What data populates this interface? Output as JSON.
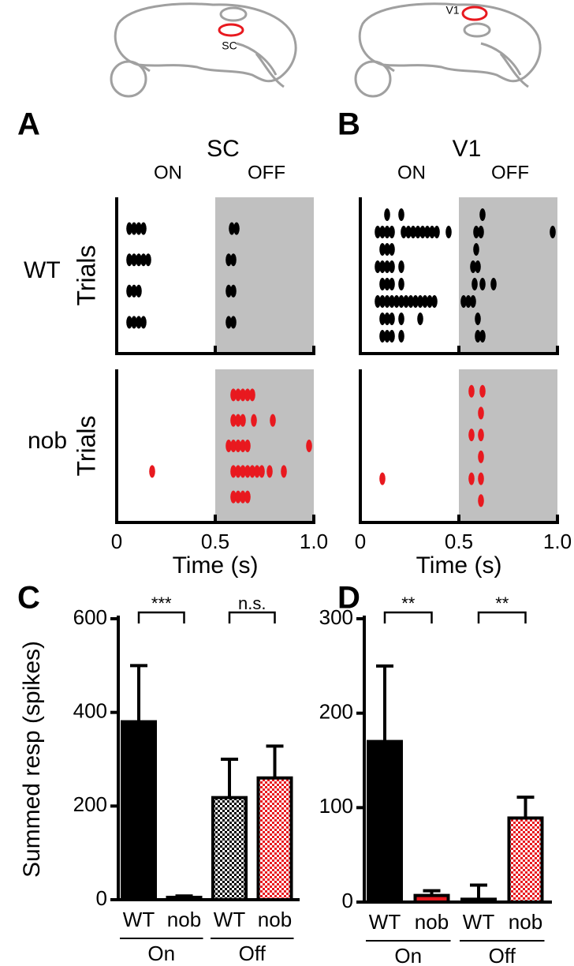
{
  "brain_labels": [
    "SC",
    "V1"
  ],
  "chart_data": [
    {
      "type": "scatter",
      "panel": "A",
      "title": "SC",
      "period_labels": [
        "ON",
        "OFF"
      ],
      "row_label": "WT",
      "y_label": "Trials",
      "color": "#000000",
      "shade": [
        0.5,
        1
      ],
      "xlim": [
        0,
        1
      ],
      "ylim": [
        0,
        5
      ],
      "xticks": [
        0.5,
        {
          "value": 1,
          "label": "1.0"
        }
      ],
      "show_tick_labels": false,
      "x": [
        0.064,
        0.088,
        0.112,
        0.136,
        0.584,
        0.608,
        0.064,
        0.088,
        0.112,
        0.136,
        0.16,
        0.568,
        0.592,
        0.064,
        0.088,
        0.112,
        0.568,
        0.592,
        0.064,
        0.088,
        0.112,
        0.136,
        0.568,
        0.592
      ],
      "y": [
        4,
        4,
        4,
        4,
        4,
        4,
        3,
        3,
        3,
        3,
        3,
        3,
        3,
        2,
        2,
        2,
        2,
        2,
        1,
        1,
        1,
        1,
        1,
        1
      ]
    },
    {
      "type": "scatter",
      "row_label": "nob",
      "y_label": "Trials",
      "x_label": "Time (s)",
      "color": "#e8191f",
      "shade": [
        0.5,
        1
      ],
      "xlim": [
        0,
        1
      ],
      "ylim": [
        0,
        6
      ],
      "xticks": [
        0,
        0.5,
        {
          "value": 1,
          "label": "1.0"
        }
      ],
      "show_tick_labels": true,
      "x": [
        0.592,
        0.616,
        0.64,
        0.664,
        0.688,
        0.592,
        0.616,
        0.64,
        0.696,
        0.792,
        0.568,
        0.592,
        0.616,
        0.64,
        0.664,
        0.976,
        0.18,
        0.592,
        0.616,
        0.64,
        0.664,
        0.688,
        0.712,
        0.736,
        0.776,
        0.848,
        0.592,
        0.616,
        0.64,
        0.664
      ],
      "y": [
        5,
        5,
        5,
        5,
        5,
        4,
        4,
        4,
        4,
        4,
        3,
        3,
        3,
        3,
        3,
        3,
        2,
        2,
        2,
        2,
        2,
        2,
        2,
        2,
        2,
        2,
        1,
        1,
        1,
        1
      ]
    },
    {
      "type": "scatter",
      "panel": "B",
      "title": "V1",
      "period_labels": [
        "ON",
        "OFF"
      ],
      "color": "#000000",
      "shade": [
        0.5,
        1
      ],
      "xlim": [
        0,
        1
      ],
      "ylim": [
        0,
        9
      ],
      "xticks": [
        0.5,
        {
          "value": 1,
          "label": "1.0"
        }
      ],
      "show_tick_labels": false,
      "x": [
        0.136,
        0.208,
        0.62,
        0.088,
        0.112,
        0.136,
        0.16,
        0.22,
        0.244,
        0.268,
        0.292,
        0.316,
        0.34,
        0.364,
        0.388,
        0.448,
        0.588,
        0.612,
        0.976,
        0.112,
        0.136,
        0.16,
        0.588,
        0.088,
        0.112,
        0.136,
        0.16,
        0.208,
        0.572,
        0.596,
        0.112,
        0.136,
        0.16,
        0.208,
        0.58,
        0.62,
        0.676,
        0.088,
        0.112,
        0.136,
        0.16,
        0.184,
        0.208,
        0.232,
        0.256,
        0.28,
        0.304,
        0.328,
        0.352,
        0.376,
        0.524,
        0.548,
        0.572,
        0.112,
        0.136,
        0.16,
        0.208,
        0.304,
        0.596,
        0.112,
        0.136,
        0.16,
        0.208,
        0.596,
        0.62
      ],
      "y": [
        8,
        8,
        8,
        7,
        7,
        7,
        7,
        7,
        7,
        7,
        7,
        7,
        7,
        7,
        7,
        7,
        7,
        7,
        7,
        6,
        6,
        6,
        6,
        5,
        5,
        5,
        5,
        5,
        5,
        5,
        4,
        4,
        4,
        4,
        4,
        4,
        4,
        3,
        3,
        3,
        3,
        3,
        3,
        3,
        3,
        3,
        3,
        3,
        3,
        3,
        3,
        3,
        3,
        2,
        2,
        2,
        2,
        2,
        2,
        1,
        1,
        1,
        1,
        1,
        1
      ]
    },
    {
      "type": "scatter",
      "x_label": "Time (s)",
      "color": "#e8191f",
      "shade": [
        0.5,
        1
      ],
      "xlim": [
        0,
        1
      ],
      "ylim": [
        0,
        7
      ],
      "xticks": [
        0,
        0.5,
        {
          "value": 1,
          "label": "1.0"
        }
      ],
      "show_tick_labels": true,
      "x": [
        0.564,
        0.62,
        0.612,
        0.564,
        0.612,
        0.612,
        0.112,
        0.564,
        0.612,
        0.612
      ],
      "y": [
        6,
        6,
        5,
        4,
        4,
        3,
        2,
        2,
        2,
        1
      ]
    },
    {
      "type": "bar",
      "panel": "C",
      "y_label": "Summed resp (spikes)",
      "categories": [
        "WT",
        "nob",
        "WT",
        "nob"
      ],
      "groups": [
        "On",
        "Off"
      ],
      "significance": [
        "***",
        "n.s."
      ],
      "values": [
        380,
        5,
        218,
        260
      ],
      "errors": [
        120,
        3,
        82,
        68
      ],
      "colors": [
        "#000000",
        "#e8191f",
        "#000000",
        "#e8191f"
      ],
      "patterns": [
        "solid",
        "solid",
        "checker",
        "checker"
      ],
      "ylim": [
        0,
        600
      ],
      "yticks": [
        0,
        200,
        400,
        600
      ]
    },
    {
      "type": "bar",
      "panel": "D",
      "categories": [
        "WT",
        "nob",
        "WT",
        "nob"
      ],
      "groups": [
        "On",
        "Off"
      ],
      "significance": [
        "**",
        "**"
      ],
      "values": [
        170,
        7,
        3,
        89
      ],
      "errors": [
        80,
        5,
        15,
        22
      ],
      "colors": [
        "#000000",
        "#e8191f",
        "#000000",
        "#e8191f"
      ],
      "patterns": [
        "solid",
        "solid",
        "checker",
        "checker"
      ],
      "ylim": [
        0,
        300
      ],
      "yticks": [
        0,
        100,
        200,
        300
      ]
    }
  ]
}
